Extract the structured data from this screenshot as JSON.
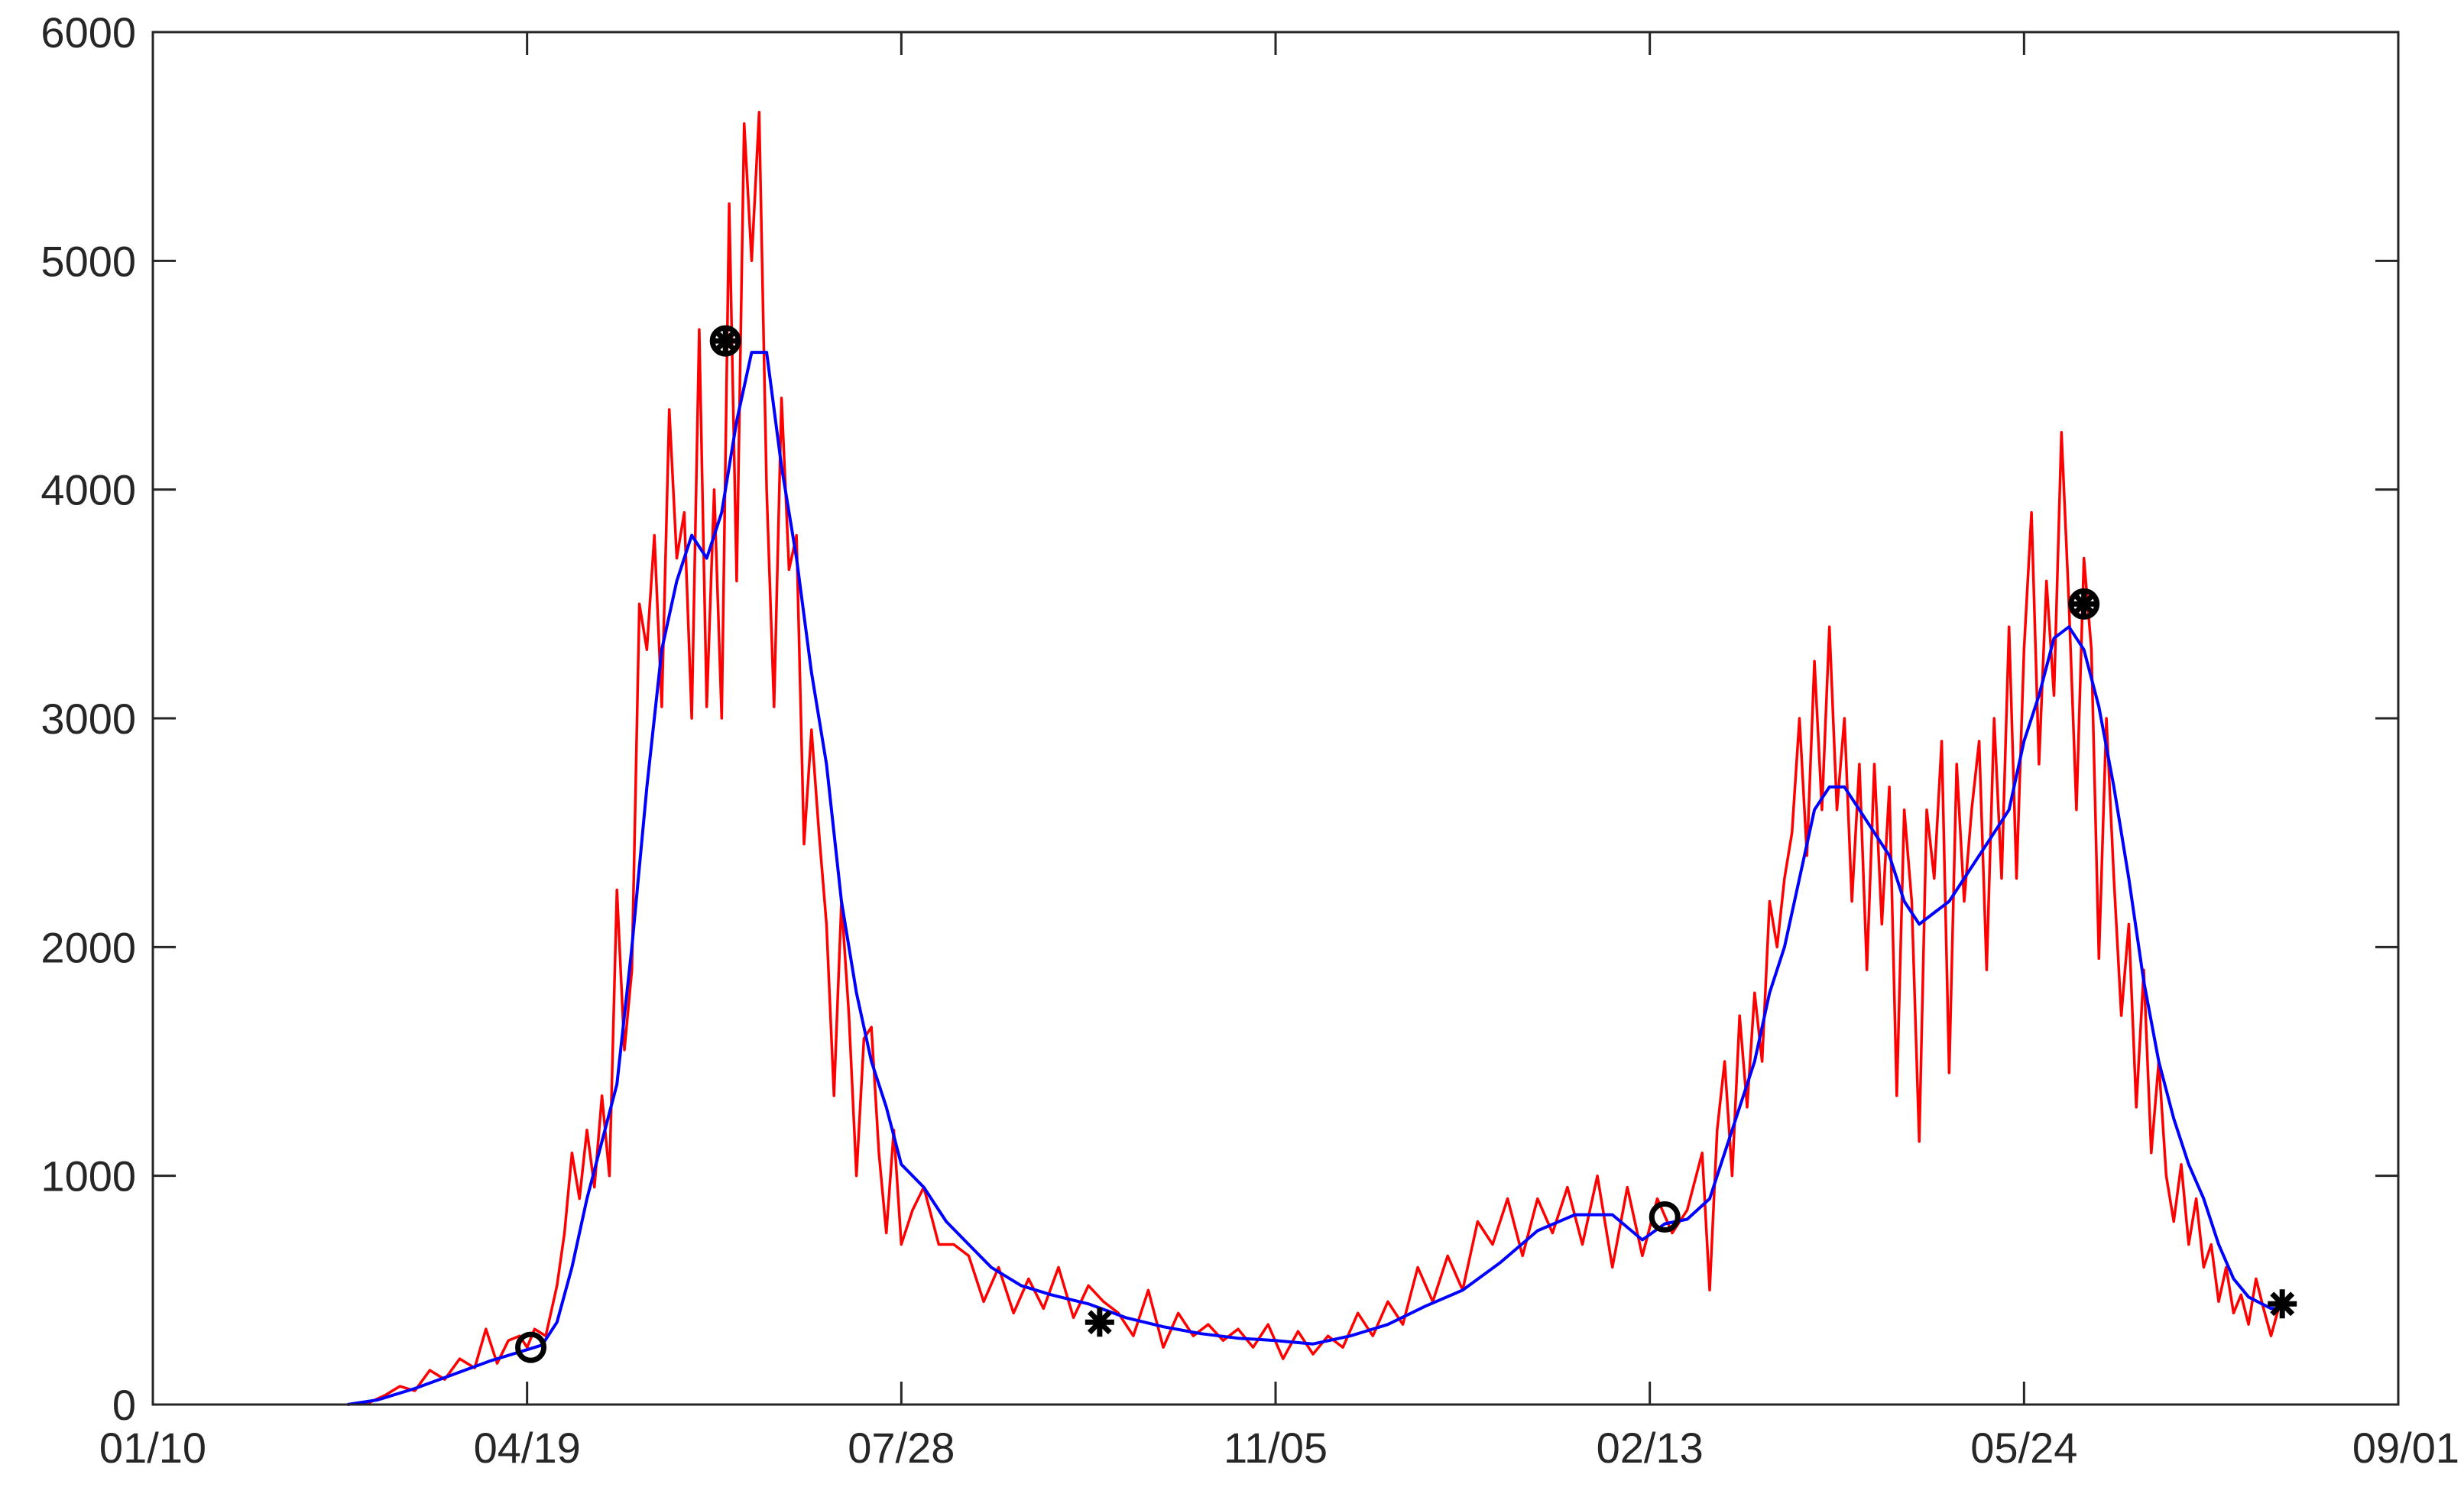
{
  "chart_data": {
    "type": "line",
    "title": "",
    "xlabel": "",
    "ylabel": "",
    "x_tick_labels": [
      "01/10",
      "04/19",
      "07/28",
      "11/05",
      "02/13",
      "05/24",
      "09/01"
    ],
    "x_tick_days": [
      0,
      100,
      200,
      300,
      400,
      500,
      600
    ],
    "xlim_days": [
      0,
      600
    ],
    "ylim": [
      0,
      6000
    ],
    "y_ticks": [
      0,
      1000,
      2000,
      3000,
      4000,
      5000,
      6000
    ],
    "grid": false,
    "legend": "none",
    "series": [
      {
        "color": "#ff0000",
        "style": "daily",
        "points": [
          [
            52,
            0
          ],
          [
            58,
            10
          ],
          [
            62,
            40
          ],
          [
            66,
            80
          ],
          [
            70,
            60
          ],
          [
            74,
            150
          ],
          [
            78,
            110
          ],
          [
            82,
            200
          ],
          [
            86,
            160
          ],
          [
            89,
            330
          ],
          [
            92,
            180
          ],
          [
            95,
            280
          ],
          [
            98,
            300
          ],
          [
            100,
            250
          ],
          [
            102,
            330
          ],
          [
            105,
            300
          ],
          [
            108,
            520
          ],
          [
            110,
            750
          ],
          [
            112,
            1100
          ],
          [
            114,
            900
          ],
          [
            116,
            1200
          ],
          [
            118,
            950
          ],
          [
            120,
            1350
          ],
          [
            122,
            1000
          ],
          [
            124,
            2250
          ],
          [
            126,
            1550
          ],
          [
            128,
            1900
          ],
          [
            130,
            3500
          ],
          [
            132,
            3300
          ],
          [
            134,
            3800
          ],
          [
            136,
            3050
          ],
          [
            138,
            4350
          ],
          [
            140,
            3700
          ],
          [
            142,
            3900
          ],
          [
            144,
            3000
          ],
          [
            146,
            4700
          ],
          [
            148,
            3050
          ],
          [
            150,
            4000
          ],
          [
            152,
            3000
          ],
          [
            154,
            5250
          ],
          [
            156,
            3600
          ],
          [
            158,
            5600
          ],
          [
            160,
            5000
          ],
          [
            162,
            5650
          ],
          [
            164,
            4000
          ],
          [
            166,
            3050
          ],
          [
            168,
            4400
          ],
          [
            170,
            3650
          ],
          [
            172,
            3800
          ],
          [
            174,
            2450
          ],
          [
            176,
            2950
          ],
          [
            178,
            2500
          ],
          [
            180,
            2100
          ],
          [
            182,
            1350
          ],
          [
            184,
            2200
          ],
          [
            186,
            1700
          ],
          [
            188,
            1000
          ],
          [
            190,
            1600
          ],
          [
            192,
            1650
          ],
          [
            194,
            1100
          ],
          [
            196,
            750
          ],
          [
            198,
            1200
          ],
          [
            200,
            700
          ],
          [
            203,
            850
          ],
          [
            206,
            950
          ],
          [
            210,
            700
          ],
          [
            214,
            700
          ],
          [
            218,
            650
          ],
          [
            222,
            450
          ],
          [
            226,
            600
          ],
          [
            230,
            400
          ],
          [
            234,
            550
          ],
          [
            238,
            420
          ],
          [
            242,
            600
          ],
          [
            246,
            380
          ],
          [
            250,
            520
          ],
          [
            254,
            450
          ],
          [
            258,
            400
          ],
          [
            262,
            300
          ],
          [
            266,
            500
          ],
          [
            270,
            250
          ],
          [
            274,
            400
          ],
          [
            278,
            300
          ],
          [
            282,
            350
          ],
          [
            286,
            280
          ],
          [
            290,
            330
          ],
          [
            294,
            250
          ],
          [
            298,
            350
          ],
          [
            302,
            200
          ],
          [
            306,
            320
          ],
          [
            310,
            220
          ],
          [
            314,
            300
          ],
          [
            318,
            250
          ],
          [
            322,
            400
          ],
          [
            326,
            300
          ],
          [
            330,
            450
          ],
          [
            334,
            350
          ],
          [
            338,
            600
          ],
          [
            342,
            450
          ],
          [
            346,
            650
          ],
          [
            350,
            500
          ],
          [
            354,
            800
          ],
          [
            358,
            700
          ],
          [
            362,
            900
          ],
          [
            366,
            650
          ],
          [
            370,
            900
          ],
          [
            374,
            750
          ],
          [
            378,
            950
          ],
          [
            382,
            700
          ],
          [
            386,
            1000
          ],
          [
            390,
            600
          ],
          [
            394,
            950
          ],
          [
            398,
            650
          ],
          [
            402,
            900
          ],
          [
            406,
            750
          ],
          [
            410,
            850
          ],
          [
            414,
            1100
          ],
          [
            416,
            500
          ],
          [
            418,
            1200
          ],
          [
            420,
            1500
          ],
          [
            422,
            1000
          ],
          [
            424,
            1700
          ],
          [
            426,
            1300
          ],
          [
            428,
            1800
          ],
          [
            430,
            1500
          ],
          [
            432,
            2200
          ],
          [
            434,
            2000
          ],
          [
            436,
            2300
          ],
          [
            438,
            2500
          ],
          [
            440,
            3000
          ],
          [
            442,
            2400
          ],
          [
            444,
            3250
          ],
          [
            446,
            2600
          ],
          [
            448,
            3400
          ],
          [
            450,
            2600
          ],
          [
            452,
            3000
          ],
          [
            454,
            2200
          ],
          [
            456,
            2800
          ],
          [
            458,
            1900
          ],
          [
            460,
            2800
          ],
          [
            462,
            2100
          ],
          [
            464,
            2700
          ],
          [
            466,
            1350
          ],
          [
            468,
            2600
          ],
          [
            470,
            2200
          ],
          [
            472,
            1150
          ],
          [
            474,
            2600
          ],
          [
            476,
            2300
          ],
          [
            478,
            2900
          ],
          [
            480,
            1450
          ],
          [
            482,
            2800
          ],
          [
            484,
            2200
          ],
          [
            486,
            2600
          ],
          [
            488,
            2900
          ],
          [
            490,
            1900
          ],
          [
            492,
            3000
          ],
          [
            494,
            2300
          ],
          [
            496,
            3400
          ],
          [
            498,
            2300
          ],
          [
            500,
            3300
          ],
          [
            502,
            3900
          ],
          [
            504,
            2800
          ],
          [
            506,
            3600
          ],
          [
            508,
            3100
          ],
          [
            510,
            4250
          ],
          [
            512,
            3500
          ],
          [
            514,
            2600
          ],
          [
            516,
            3700
          ],
          [
            518,
            3300
          ],
          [
            520,
            1950
          ],
          [
            522,
            3000
          ],
          [
            524,
            2300
          ],
          [
            526,
            1700
          ],
          [
            528,
            2100
          ],
          [
            530,
            1300
          ],
          [
            532,
            1900
          ],
          [
            534,
            1100
          ],
          [
            536,
            1500
          ],
          [
            538,
            1000
          ],
          [
            540,
            800
          ],
          [
            542,
            1050
          ],
          [
            544,
            700
          ],
          [
            546,
            900
          ],
          [
            548,
            600
          ],
          [
            550,
            700
          ],
          [
            552,
            450
          ],
          [
            554,
            600
          ],
          [
            556,
            400
          ],
          [
            558,
            480
          ],
          [
            560,
            350
          ],
          [
            562,
            550
          ],
          [
            564,
            420
          ],
          [
            566,
            300
          ],
          [
            568,
            420
          ]
        ]
      },
      {
        "color": "#0000ff",
        "style": "smoothed",
        "points": [
          [
            52,
            0
          ],
          [
            60,
            20
          ],
          [
            70,
            70
          ],
          [
            80,
            130
          ],
          [
            90,
            190
          ],
          [
            100,
            240
          ],
          [
            104,
            260
          ],
          [
            108,
            360
          ],
          [
            112,
            600
          ],
          [
            116,
            900
          ],
          [
            120,
            1150
          ],
          [
            124,
            1400
          ],
          [
            128,
            2000
          ],
          [
            132,
            2700
          ],
          [
            136,
            3300
          ],
          [
            140,
            3600
          ],
          [
            144,
            3800
          ],
          [
            148,
            3700
          ],
          [
            152,
            3900
          ],
          [
            156,
            4300
          ],
          [
            160,
            4600
          ],
          [
            164,
            4600
          ],
          [
            168,
            4100
          ],
          [
            172,
            3700
          ],
          [
            176,
            3200
          ],
          [
            180,
            2800
          ],
          [
            184,
            2200
          ],
          [
            188,
            1800
          ],
          [
            192,
            1500
          ],
          [
            196,
            1300
          ],
          [
            200,
            1050
          ],
          [
            206,
            950
          ],
          [
            212,
            800
          ],
          [
            218,
            700
          ],
          [
            224,
            600
          ],
          [
            232,
            520
          ],
          [
            240,
            480
          ],
          [
            250,
            440
          ],
          [
            260,
            380
          ],
          [
            270,
            340
          ],
          [
            280,
            310
          ],
          [
            290,
            290
          ],
          [
            300,
            280
          ],
          [
            310,
            265
          ],
          [
            320,
            300
          ],
          [
            330,
            350
          ],
          [
            340,
            430
          ],
          [
            350,
            500
          ],
          [
            360,
            620
          ],
          [
            370,
            760
          ],
          [
            380,
            830
          ],
          [
            390,
            830
          ],
          [
            398,
            720
          ],
          [
            404,
            790
          ],
          [
            410,
            810
          ],
          [
            416,
            900
          ],
          [
            420,
            1100
          ],
          [
            424,
            1300
          ],
          [
            428,
            1500
          ],
          [
            432,
            1800
          ],
          [
            436,
            2000
          ],
          [
            440,
            2300
          ],
          [
            444,
            2600
          ],
          [
            448,
            2700
          ],
          [
            452,
            2700
          ],
          [
            456,
            2600
          ],
          [
            460,
            2500
          ],
          [
            464,
            2400
          ],
          [
            468,
            2200
          ],
          [
            472,
            2100
          ],
          [
            476,
            2150
          ],
          [
            480,
            2200
          ],
          [
            484,
            2300
          ],
          [
            488,
            2400
          ],
          [
            492,
            2500
          ],
          [
            496,
            2600
          ],
          [
            500,
            2900
          ],
          [
            504,
            3100
          ],
          [
            508,
            3350
          ],
          [
            512,
            3400
          ],
          [
            516,
            3300
          ],
          [
            520,
            3050
          ],
          [
            524,
            2700
          ],
          [
            528,
            2300
          ],
          [
            532,
            1850
          ],
          [
            536,
            1500
          ],
          [
            540,
            1250
          ],
          [
            544,
            1050
          ],
          [
            548,
            900
          ],
          [
            552,
            700
          ],
          [
            556,
            550
          ],
          [
            560,
            470
          ],
          [
            566,
            420
          ],
          [
            568,
            420
          ]
        ]
      }
    ],
    "markers": [
      {
        "symbol": "circle",
        "x": 101,
        "y": 250
      },
      {
        "symbol": "circle",
        "x": 404,
        "y": 820
      },
      {
        "symbol": "circle-asterisk",
        "x": 153,
        "y": 4650
      },
      {
        "symbol": "circle-asterisk",
        "x": 516,
        "y": 3500
      },
      {
        "symbol": "asterisk",
        "x": 253,
        "y": 360
      },
      {
        "symbol": "asterisk",
        "x": 569,
        "y": 440
      }
    ]
  }
}
